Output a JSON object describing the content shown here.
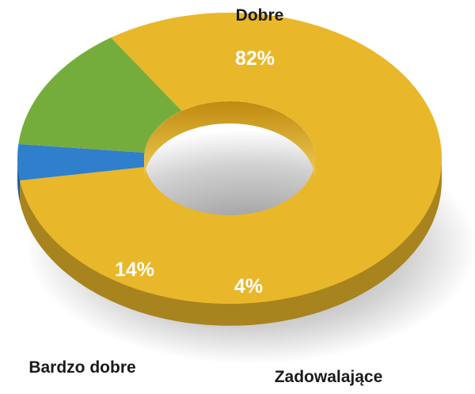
{
  "chart_data": {
    "type": "pie",
    "donut": true,
    "three_d": true,
    "categories": [
      "Dobre",
      "Zadowalające",
      "Bardzo dobre"
    ],
    "values": [
      82,
      4,
      14
    ],
    "value_labels": [
      "82%",
      "4%",
      "14%"
    ],
    "colors": [
      "#e9b72a",
      "#2f7fcc",
      "#74ad3c"
    ],
    "legend": "none",
    "grid": false
  }
}
